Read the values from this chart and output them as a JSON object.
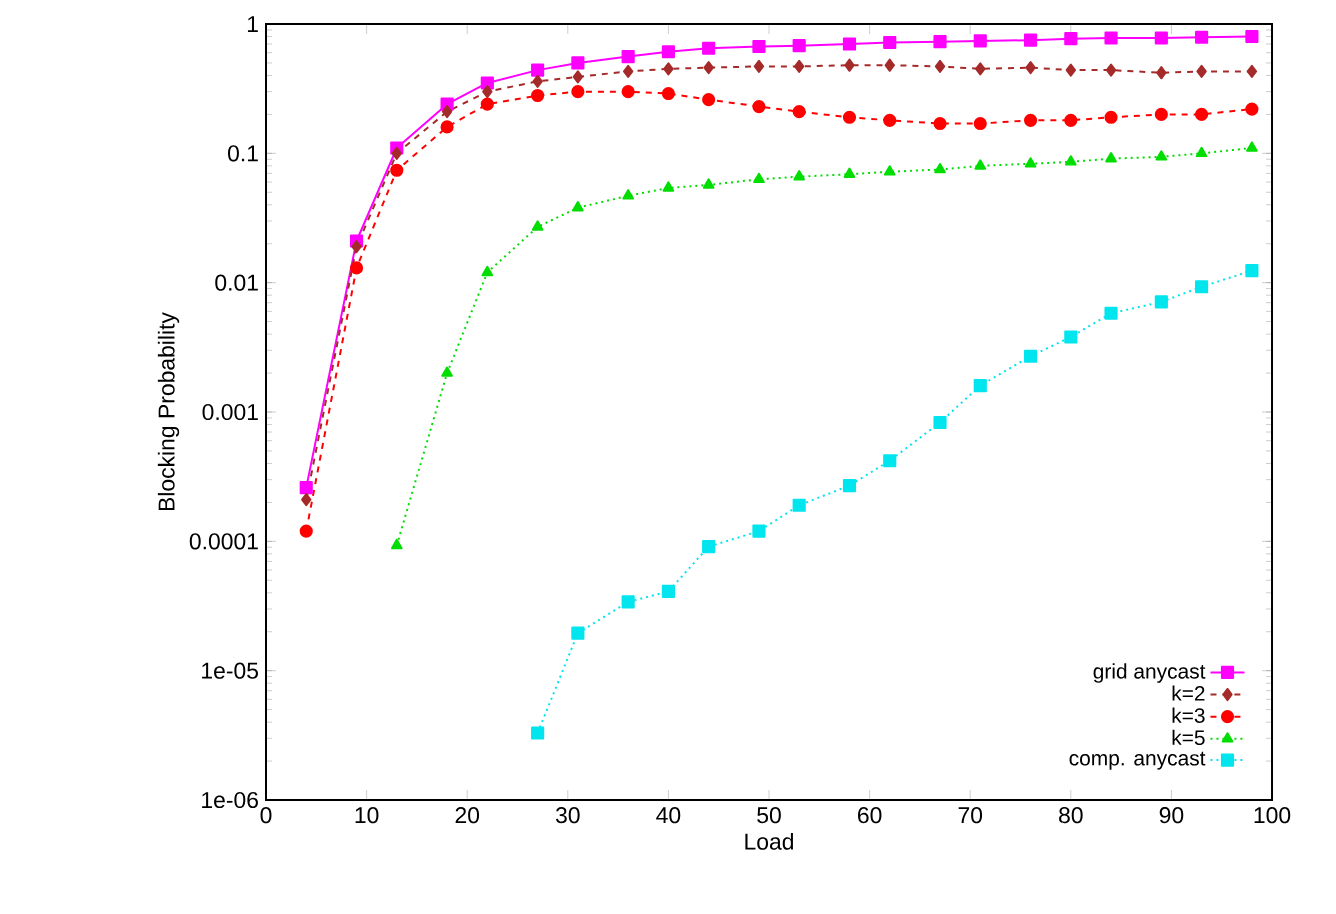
{
  "chart_data": {
    "type": "line",
    "xlabel": "Load",
    "ylabel": "Blocking Probability",
    "log": "y",
    "grid": false,
    "legend": "bottom right",
    "x": [
      4,
      9,
      13,
      18,
      22,
      27,
      31,
      36,
      40,
      44,
      49,
      53,
      58,
      62,
      67,
      71,
      76,
      80,
      84,
      89,
      93,
      98
    ],
    "xlim": [
      0,
      100
    ],
    "xticks": [
      0,
      10,
      20,
      30,
      40,
      50,
      60,
      70,
      80,
      90,
      100
    ],
    "ylim": [
      1e-06,
      1
    ],
    "yticks": [
      {
        "value": 1e-06,
        "label": "1e-06"
      },
      {
        "value": 1e-05,
        "label": "1e-05"
      },
      {
        "value": 0.0001,
        "label": "0.0001"
      },
      {
        "value": 0.001,
        "label": "0.001"
      },
      {
        "value": 0.01,
        "label": "0.01"
      },
      {
        "value": 0.1,
        "label": "0.1"
      },
      {
        "value": 1,
        "label": "1"
      }
    ],
    "series": [
      {
        "name": "grid anycast",
        "color": "#ff00ff",
        "marker": "square",
        "line_style": "solid",
        "values": [
          0.00026,
          0.021,
          0.11,
          0.24,
          0.35,
          0.44,
          0.5,
          0.56,
          0.61,
          0.65,
          0.67,
          0.68,
          0.7,
          0.72,
          0.73,
          0.74,
          0.75,
          0.77,
          0.78,
          0.78,
          0.79,
          0.8
        ]
      },
      {
        "name": "k=2",
        "color": "#a52a2a",
        "marker": "diamond",
        "line_style": "dashed",
        "values": [
          0.00021,
          0.019,
          0.1,
          0.21,
          0.3,
          0.36,
          0.39,
          0.43,
          0.45,
          0.46,
          0.47,
          0.47,
          0.48,
          0.48,
          0.47,
          0.45,
          0.46,
          0.44,
          0.44,
          0.42,
          0.43,
          0.43
        ]
      },
      {
        "name": "k=3",
        "color": "#ff0000",
        "marker": "circle",
        "line_style": "dashed",
        "values": [
          0.00012,
          0.013,
          0.074,
          0.16,
          0.24,
          0.28,
          0.3,
          0.3,
          0.29,
          0.26,
          0.23,
          0.21,
          0.19,
          0.18,
          0.17,
          0.17,
          0.18,
          0.18,
          0.19,
          0.2,
          0.2,
          0.22
        ]
      },
      {
        "name": "k=5",
        "color": "#00dd00",
        "marker": "triangle",
        "line_style": "dotted",
        "values": [
          null,
          null,
          9.3e-05,
          0.002,
          0.012,
          0.027,
          0.038,
          0.047,
          0.054,
          0.057,
          0.063,
          0.066,
          0.069,
          0.072,
          0.075,
          0.08,
          0.083,
          0.086,
          0.091,
          0.094,
          0.1,
          0.11
        ]
      },
      {
        "name": "comp. anycast",
        "color": "#00e5ee",
        "marker": "square",
        "line_style": "dotted",
        "values": [
          null,
          null,
          null,
          null,
          null,
          3.3e-06,
          1.95e-05,
          3.4e-05,
          4.1e-05,
          9.1e-05,
          0.00012,
          0.00019,
          0.00027,
          0.00042,
          0.00083,
          0.0016,
          0.0027,
          0.0038,
          0.0058,
          0.0071,
          0.0093,
          0.0124
        ]
      }
    ]
  }
}
